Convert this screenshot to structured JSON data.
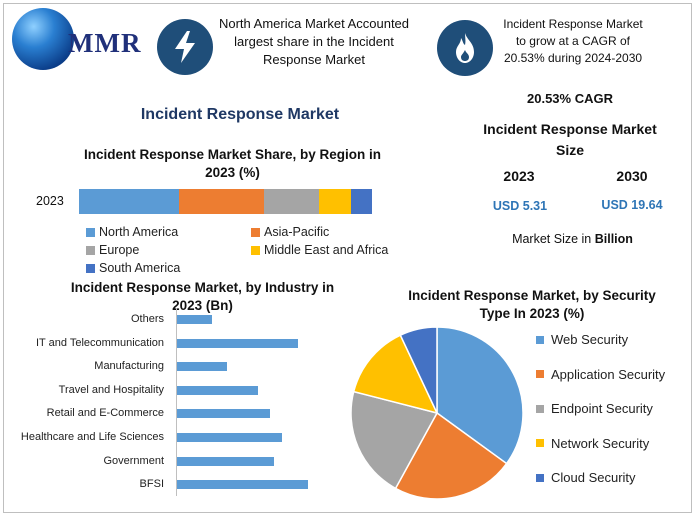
{
  "logo": {
    "text": "MMR"
  },
  "header": {
    "left_text": "North America Market Accounted largest share in the Incident Response Market",
    "right_text": "Incident Response Market to grow at a CAGR of 20.53% during 2024-2030",
    "left_icon": "lightning-icon",
    "right_icon": "flame-icon"
  },
  "main_title": "Incident Response Market",
  "summary": {
    "cagr": "20.53% CAGR",
    "size_title": "Incident Response Market Size",
    "year1": "2023",
    "year2": "2030",
    "value1": "USD 5.31",
    "value2": "USD 19.64",
    "note_prefix": "Market Size in ",
    "note_bold": "Billion"
  },
  "colors": {
    "blue": "#5b9bd5",
    "orange": "#ed7d31",
    "gray": "#a5a5a5",
    "yellow": "#ffc000",
    "darkblue": "#4472c4",
    "icon_circle": "#1f4e79",
    "title_navy": "#1f3864"
  },
  "chart_data": [
    {
      "type": "bar",
      "orientation": "horizontal-stacked",
      "title": "Incident Response Market Share, by Region in 2023 (%)",
      "categories": [
        "2023"
      ],
      "series": [
        {
          "name": "North America",
          "values": [
            34
          ],
          "color": "#5b9bd5"
        },
        {
          "name": "Asia-Pacific",
          "values": [
            29
          ],
          "color": "#ed7d31"
        },
        {
          "name": "Europe",
          "values": [
            19
          ],
          "color": "#a5a5a5"
        },
        {
          "name": "Middle East and Africa",
          "values": [
            11
          ],
          "color": "#ffc000"
        },
        {
          "name": "South America",
          "values": [
            7
          ],
          "color": "#4472c4"
        }
      ],
      "legend": "bottom"
    },
    {
      "type": "bar",
      "orientation": "horizontal",
      "title": "Incident Response Market, by Industry in 2023 (Bn)",
      "categories": [
        "Others",
        "IT and Telecommunication",
        "Manufacturing",
        "Travel and Hospitality",
        "Retail and E-Commerce",
        "Healthcare and Life Sciences",
        "Government",
        "BFSI"
      ],
      "values": [
        0.35,
        1.2,
        0.5,
        0.8,
        0.92,
        1.04,
        0.96,
        1.3
      ],
      "color": "#5b9bd5"
    },
    {
      "type": "pie",
      "title": "Incident Response Market, by Security Type In 2023 (%)",
      "categories": [
        "Web Security",
        "Application Security",
        "Endpoint Security",
        "Network Security",
        "Cloud Security"
      ],
      "values": [
        35,
        23,
        21,
        14,
        7
      ],
      "colors": [
        "#5b9bd5",
        "#ed7d31",
        "#a5a5a5",
        "#ffc000",
        "#4472c4"
      ],
      "legend": "right"
    }
  ]
}
